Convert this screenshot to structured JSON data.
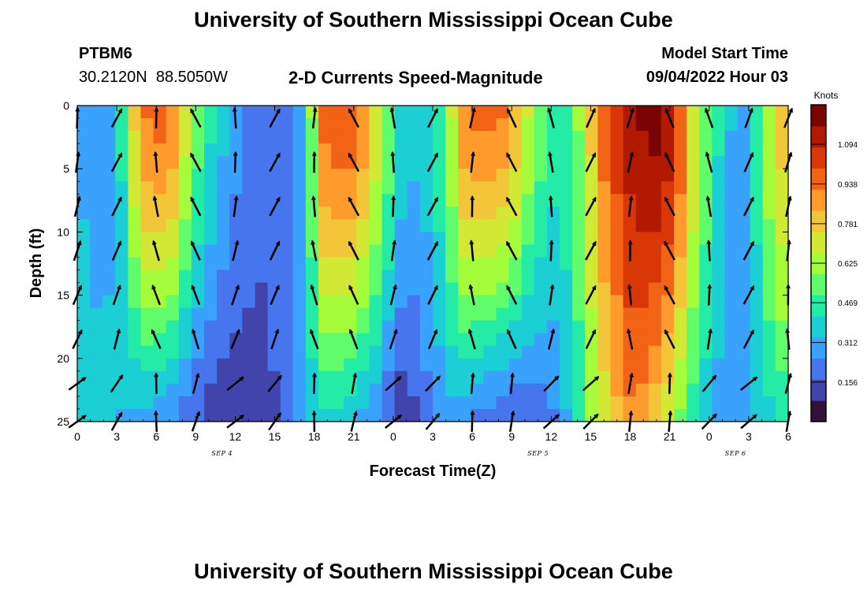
{
  "header": {
    "title": "University of Southern Mississippi Ocean Cube",
    "station_id": "PTBM6",
    "station_coords": "30.2120N  88.5050W",
    "subtitle": "2-D Currents Speed-Magnitude",
    "model_start_label": "Model Start Time",
    "model_start_value": "09/04/2022 Hour 03"
  },
  "footer": {
    "title": "University of Southern Mississippi Ocean Cube"
  },
  "chart_data": {
    "type": "heatmap",
    "xlabel": "Forecast Time(Z)",
    "ylabel": "Depth (ft)",
    "x_hours_ticks": [
      "0",
      "3",
      "6",
      "9",
      "12",
      "15",
      "18",
      "21",
      "0",
      "3",
      "6",
      "9",
      "12",
      "15",
      "18",
      "21",
      "0",
      "3",
      "6"
    ],
    "x_range_hours": [
      0,
      54
    ],
    "date_labels": [
      {
        "text": "SEP 4",
        "at_hour": 11
      },
      {
        "text": "SEP 5",
        "at_hour": 35
      },
      {
        "text": "SEP 6",
        "at_hour": 50
      }
    ],
    "y_ticks": [
      "0",
      "5",
      "10",
      "15",
      "20",
      "25"
    ],
    "y_range_ft": [
      0,
      25
    ],
    "y_inverted": true,
    "colorbar": {
      "unit": "Knots",
      "tick_labels": [
        "1.094",
        "0.938",
        "0.781",
        "0.625",
        "0.469",
        "0.312",
        "0.156"
      ],
      "tick_values": [
        1.094,
        0.938,
        0.781,
        0.625,
        0.469,
        0.312,
        0.156
      ],
      "range": [
        0.0,
        1.25
      ],
      "colors": [
        "#30123b",
        "#4145ab",
        "#4675ed",
        "#39a2fc",
        "#1bcfd4",
        "#24eca6",
        "#61fc6c",
        "#a4fc3b",
        "#d1e834",
        "#f3c63a",
        "#fe9b2d",
        "#f36315",
        "#d93806",
        "#b11901",
        "#7a0403"
      ]
    },
    "speed_profile_surface_knots": [
      0.35,
      0.25,
      0.3,
      0.45,
      0.9,
      0.95,
      0.95,
      0.7,
      0.5,
      0.4,
      0.3,
      0.25,
      0.2,
      0.2,
      0.15,
      0.5,
      0.95,
      1.0,
      1.0,
      0.8,
      0.6,
      0.4,
      0.35,
      0.4,
      0.6,
      0.9,
      0.95,
      0.95,
      0.9,
      0.7,
      0.55,
      0.45,
      0.5,
      0.7,
      0.95,
      1.05,
      1.15,
      1.2,
      1.2,
      1.0,
      0.7,
      0.5,
      0.35,
      0.3,
      0.45,
      0.7,
      0.85
    ],
    "speed_profile_bottom_knots": [
      0.4,
      0.4,
      0.35,
      0.3,
      0.3,
      0.25,
      0.2,
      0.15,
      0.1,
      0.1,
      0.1,
      0.15,
      0.25,
      0.35,
      0.4,
      0.35,
      0.3,
      0.25,
      0.1,
      0.15,
      0.25,
      0.3,
      0.25,
      0.2,
      0.15,
      0.15,
      0.2,
      0.25,
      0.4,
      0.6,
      0.75,
      0.9,
      0.85,
      0.7,
      0.55,
      0.4,
      0.3,
      0.3,
      0.35,
      0.4,
      0.45
    ],
    "arrows_drawn": true
  }
}
